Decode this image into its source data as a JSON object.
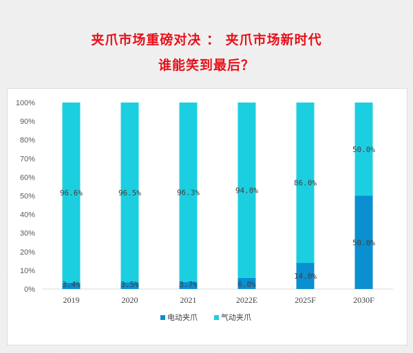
{
  "header": {
    "title_line1": "夹爪市场重磅对决 ： 夹爪市场新时代",
    "title_line2": "谁能笑到最后？"
  },
  "colors": {
    "title": "#e8101a",
    "electric": "#0a8fd0",
    "pneumatic": "#1ccfe0"
  },
  "chart_data": {
    "type": "bar",
    "stacked": true,
    "categories": [
      "2019",
      "2020",
      "2021",
      "2022E",
      "2025F",
      "2030F"
    ],
    "series": [
      {
        "name": "电动夹爪",
        "values": [
          3.4,
          3.5,
          3.7,
          6.0,
          14.0,
          50.0
        ],
        "labels": [
          "3.4%",
          "3.5%",
          "3.7%",
          "6.0%",
          "14.0%",
          "50.0%"
        ],
        "color": "#0a8fd0"
      },
      {
        "name": "气动夹爪",
        "values": [
          96.6,
          96.5,
          96.3,
          94.0,
          86.0,
          50.0
        ],
        "labels": [
          "96.6%",
          "96.5%",
          "96.3%",
          "94.0%",
          "86.0%",
          "50.0%"
        ],
        "color": "#1ccfe0"
      }
    ],
    "yticks": [
      "0%",
      "10%",
      "20%",
      "30%",
      "40%",
      "50%",
      "60%",
      "70%",
      "80%",
      "90%",
      "100%"
    ],
    "ylim": [
      0,
      100
    ],
    "grid": false,
    "legend": "bottom"
  }
}
